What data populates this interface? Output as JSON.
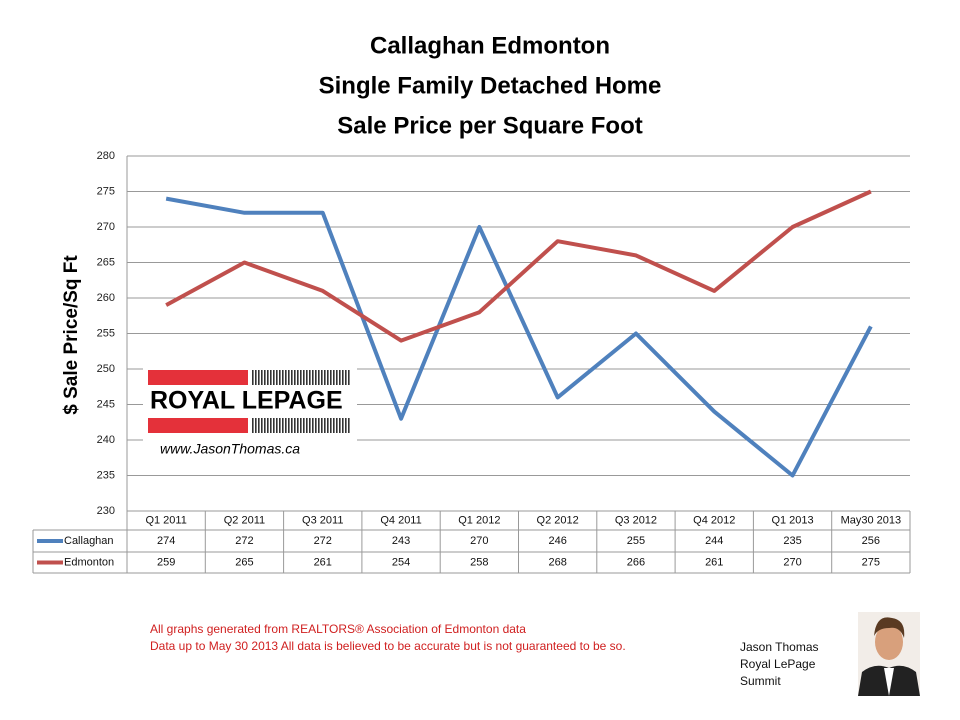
{
  "chart_data": {
    "type": "line",
    "title": [
      "Callaghan Edmonton",
      "Single Family Detached Home",
      "Sale Price per Square Foot"
    ],
    "y_label": "$ Sale Price/Sq Ft",
    "categories": [
      "Q1 2011",
      "Q2 2011",
      "Q3 2011",
      "Q4 2011",
      "Q1 2012",
      "Q2 2012",
      "Q3 2012",
      "Q4 2012",
      "Q1 2013",
      "May30 2013"
    ],
    "series": [
      {
        "name": "Callaghan",
        "color": "#4f81bd",
        "values": [
          274,
          272,
          272,
          243,
          270,
          246,
          255,
          244,
          235,
          256
        ]
      },
      {
        "name": "Edmonton",
        "color": "#c0504d",
        "values": [
          259,
          265,
          261,
          254,
          258,
          268,
          266,
          261,
          270,
          275
        ]
      }
    ],
    "ylim": [
      230,
      280
    ],
    "yticks": [
      230,
      235,
      240,
      245,
      250,
      255,
      260,
      265,
      270,
      275,
      280
    ],
    "grid": true,
    "data_table": true,
    "logo": {
      "brand": "ROYAL LEPAGE",
      "url": "www.JasonThomas.ca"
    },
    "notes": [
      "All graphs generated from REALTORS® Association of Edmonton data",
      "Data up to  May 30 2013  All data is believed to be accurate but is not guaranteed to be so."
    ],
    "agent": [
      "Jason Thomas",
      "Royal LePage",
      "Summit"
    ]
  }
}
